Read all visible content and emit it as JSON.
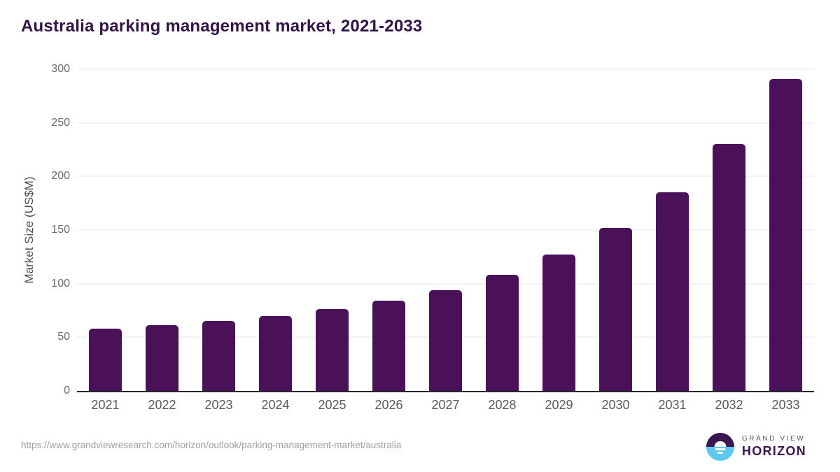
{
  "title": "Australia parking management market, 2021-2033",
  "footer": {
    "source_url": "https://www.grandviewresearch.com/horizon/outlook/parking-management-market/australia",
    "logo": {
      "line1": "GRAND VIEW",
      "line2": "HORIZON"
    }
  },
  "colors": {
    "bar": "#4a1158",
    "title": "#311345",
    "axis_text": "#6b6b6b",
    "gridline": "#e7e7e7",
    "axis_line": "#262626",
    "url_text": "#9e9e9e",
    "logo_purple": "#3a1650",
    "logo_blue": "#5ec8f2",
    "logo_grandview_text": "#54565a"
  },
  "chart_data": {
    "type": "bar",
    "title": "Australia parking management market, 2021-2033",
    "categories": [
      "2021",
      "2022",
      "2023",
      "2024",
      "2025",
      "2026",
      "2027",
      "2028",
      "2029",
      "2030",
      "2031",
      "2032",
      "2033"
    ],
    "values": [
      58,
      61,
      65,
      70,
      76,
      84,
      94,
      108,
      127,
      152,
      185,
      230,
      291
    ],
    "xlabel": "",
    "ylabel": "Market Size (US$M)",
    "ylim": [
      0,
      300
    ],
    "yticks": [
      0,
      50,
      100,
      150,
      200,
      250,
      300
    ],
    "grid": true,
    "legend": false,
    "bar_color": "#4a1158"
  }
}
